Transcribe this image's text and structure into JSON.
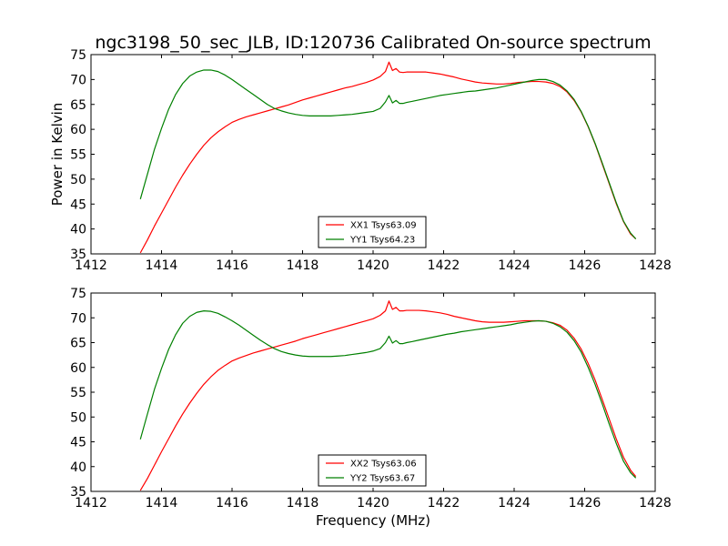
{
  "title": "ngc3198_50_sec_JLB, ID:120736 Calibrated On-source spectrum",
  "chart_data": [
    {
      "type": "line",
      "ylabel": "Power in Kelvin",
      "xlabel": "",
      "xlim": [
        1412,
        1428
      ],
      "ylim": [
        35,
        75
      ],
      "xticks": [
        "1412",
        "1414",
        "1416",
        "1418",
        "1420",
        "1422",
        "1424",
        "1426",
        "1428"
      ],
      "yticks": [
        "35",
        "40",
        "45",
        "50",
        "55",
        "60",
        "65",
        "70",
        "75"
      ],
      "legend_position": "lower-center",
      "series": [
        {
          "name": "XX1 Tsys63.09",
          "color": "#ff0000",
          "x": [
            1413.4,
            1413.6,
            1413.8,
            1414.0,
            1414.2,
            1414.4,
            1414.6,
            1414.8,
            1415.0,
            1415.2,
            1415.4,
            1415.6,
            1415.8,
            1416.0,
            1416.2,
            1416.4,
            1416.6,
            1416.8,
            1417.0,
            1417.2,
            1417.4,
            1417.6,
            1417.8,
            1418.0,
            1418.2,
            1418.4,
            1418.6,
            1418.8,
            1419.0,
            1419.2,
            1419.4,
            1419.6,
            1419.8,
            1420.0,
            1420.2,
            1420.35,
            1420.45,
            1420.55,
            1420.65,
            1420.75,
            1420.85,
            1420.95,
            1421.1,
            1421.3,
            1421.5,
            1421.7,
            1421.9,
            1422.1,
            1422.3,
            1422.5,
            1422.7,
            1422.9,
            1423.1,
            1423.3,
            1423.5,
            1423.7,
            1423.9,
            1424.1,
            1424.3,
            1424.5,
            1424.7,
            1424.9,
            1425.1,
            1425.3,
            1425.5,
            1425.7,
            1425.9,
            1426.1,
            1426.3,
            1426.5,
            1426.7,
            1426.9,
            1427.1,
            1427.3,
            1427.45
          ],
          "y": [
            35.2,
            37.8,
            40.6,
            43.2,
            45.8,
            48.4,
            50.8,
            53.0,
            55.0,
            56.8,
            58.3,
            59.5,
            60.5,
            61.4,
            62.0,
            62.5,
            62.9,
            63.3,
            63.7,
            64.1,
            64.5,
            64.9,
            65.4,
            65.9,
            66.3,
            66.7,
            67.1,
            67.5,
            67.9,
            68.3,
            68.6,
            69.0,
            69.4,
            69.9,
            70.6,
            71.6,
            73.5,
            71.8,
            72.2,
            71.5,
            71.4,
            71.5,
            71.5,
            71.5,
            71.5,
            71.3,
            71.1,
            70.8,
            70.5,
            70.1,
            69.8,
            69.5,
            69.3,
            69.2,
            69.1,
            69.1,
            69.2,
            69.4,
            69.5,
            69.6,
            69.6,
            69.5,
            69.2,
            68.6,
            67.5,
            65.8,
            63.5,
            60.5,
            57.0,
            53.0,
            49.0,
            45.0,
            41.5,
            39.0,
            38.0
          ]
        },
        {
          "name": "YY1 Tsys64.23",
          "color": "#008000",
          "x": [
            1413.4,
            1413.6,
            1413.8,
            1414.0,
            1414.2,
            1414.4,
            1414.6,
            1414.8,
            1415.0,
            1415.2,
            1415.4,
            1415.6,
            1415.8,
            1416.0,
            1416.2,
            1416.4,
            1416.6,
            1416.8,
            1417.0,
            1417.2,
            1417.4,
            1417.6,
            1417.8,
            1418.0,
            1418.2,
            1418.4,
            1418.6,
            1418.8,
            1419.0,
            1419.2,
            1419.4,
            1419.6,
            1419.8,
            1420.0,
            1420.2,
            1420.35,
            1420.45,
            1420.55,
            1420.65,
            1420.75,
            1420.85,
            1420.95,
            1421.1,
            1421.3,
            1421.5,
            1421.7,
            1421.9,
            1422.1,
            1422.3,
            1422.5,
            1422.7,
            1422.9,
            1423.1,
            1423.3,
            1423.5,
            1423.7,
            1423.9,
            1424.1,
            1424.3,
            1424.5,
            1424.7,
            1424.9,
            1425.1,
            1425.3,
            1425.5,
            1425.7,
            1425.9,
            1426.1,
            1426.3,
            1426.5,
            1426.7,
            1426.9,
            1427.1,
            1427.3,
            1427.45
          ],
          "y": [
            46.0,
            51.0,
            56.0,
            60.2,
            64.0,
            67.0,
            69.2,
            70.7,
            71.5,
            71.9,
            71.9,
            71.6,
            70.9,
            70.0,
            69.0,
            68.0,
            67.0,
            66.0,
            65.0,
            64.2,
            63.7,
            63.3,
            63.0,
            62.8,
            62.7,
            62.7,
            62.7,
            62.7,
            62.8,
            62.9,
            63.0,
            63.2,
            63.4,
            63.6,
            64.2,
            65.5,
            66.8,
            65.3,
            65.8,
            65.2,
            65.2,
            65.4,
            65.6,
            65.9,
            66.2,
            66.5,
            66.8,
            67.0,
            67.2,
            67.4,
            67.6,
            67.7,
            67.9,
            68.1,
            68.3,
            68.6,
            68.9,
            69.2,
            69.5,
            69.8,
            70.0,
            70.0,
            69.6,
            68.9,
            67.7,
            66.0,
            63.6,
            60.6,
            57.1,
            53.2,
            49.2,
            45.2,
            41.6,
            39.2,
            38.0
          ]
        }
      ]
    },
    {
      "type": "line",
      "ylabel": "",
      "xlabel": "Frequency (MHz)",
      "xlim": [
        1412,
        1428
      ],
      "ylim": [
        35,
        75
      ],
      "xticks": [
        "1412",
        "1414",
        "1416",
        "1418",
        "1420",
        "1422",
        "1424",
        "1426",
        "1428"
      ],
      "yticks": [
        "35",
        "40",
        "45",
        "50",
        "55",
        "60",
        "65",
        "70",
        "75"
      ],
      "legend_position": "lower-center",
      "series": [
        {
          "name": "XX2 Tsys63.06",
          "color": "#ff0000",
          "x": [
            1413.4,
            1413.6,
            1413.8,
            1414.0,
            1414.2,
            1414.4,
            1414.6,
            1414.8,
            1415.0,
            1415.2,
            1415.4,
            1415.6,
            1415.8,
            1416.0,
            1416.2,
            1416.4,
            1416.6,
            1416.8,
            1417.0,
            1417.2,
            1417.4,
            1417.6,
            1417.8,
            1418.0,
            1418.2,
            1418.4,
            1418.6,
            1418.8,
            1419.0,
            1419.2,
            1419.4,
            1419.6,
            1419.8,
            1420.0,
            1420.2,
            1420.35,
            1420.45,
            1420.55,
            1420.65,
            1420.75,
            1420.85,
            1420.95,
            1421.1,
            1421.3,
            1421.5,
            1421.7,
            1421.9,
            1422.1,
            1422.3,
            1422.5,
            1422.7,
            1422.9,
            1423.1,
            1423.3,
            1423.5,
            1423.7,
            1423.9,
            1424.1,
            1424.3,
            1424.5,
            1424.7,
            1424.9,
            1425.1,
            1425.3,
            1425.5,
            1425.7,
            1425.9,
            1426.1,
            1426.3,
            1426.5,
            1426.7,
            1426.9,
            1427.1,
            1427.3,
            1427.45
          ],
          "y": [
            35.2,
            37.6,
            40.3,
            43.0,
            45.6,
            48.2,
            50.6,
            52.8,
            54.8,
            56.6,
            58.1,
            59.4,
            60.4,
            61.3,
            61.9,
            62.4,
            62.9,
            63.3,
            63.7,
            64.1,
            64.5,
            64.9,
            65.3,
            65.8,
            66.2,
            66.6,
            67.0,
            67.4,
            67.8,
            68.2,
            68.6,
            69.0,
            69.4,
            69.8,
            70.5,
            71.4,
            73.4,
            71.7,
            72.1,
            71.4,
            71.4,
            71.5,
            71.5,
            71.5,
            71.4,
            71.2,
            71.0,
            70.7,
            70.3,
            70.0,
            69.7,
            69.4,
            69.2,
            69.1,
            69.1,
            69.1,
            69.2,
            69.3,
            69.4,
            69.4,
            69.4,
            69.3,
            69.0,
            68.5,
            67.5,
            65.9,
            63.7,
            60.8,
            57.4,
            53.5,
            49.5,
            45.5,
            41.9,
            39.3,
            38.0
          ]
        },
        {
          "name": "YY2 Tsys63.67",
          "color": "#008000",
          "x": [
            1413.4,
            1413.6,
            1413.8,
            1414.0,
            1414.2,
            1414.4,
            1414.6,
            1414.8,
            1415.0,
            1415.2,
            1415.4,
            1415.6,
            1415.8,
            1416.0,
            1416.2,
            1416.4,
            1416.6,
            1416.8,
            1417.0,
            1417.2,
            1417.4,
            1417.6,
            1417.8,
            1418.0,
            1418.2,
            1418.4,
            1418.6,
            1418.8,
            1419.0,
            1419.2,
            1419.4,
            1419.6,
            1419.8,
            1420.0,
            1420.2,
            1420.35,
            1420.45,
            1420.55,
            1420.65,
            1420.75,
            1420.85,
            1420.95,
            1421.1,
            1421.3,
            1421.5,
            1421.7,
            1421.9,
            1422.1,
            1422.3,
            1422.5,
            1422.7,
            1422.9,
            1423.1,
            1423.3,
            1423.5,
            1423.7,
            1423.9,
            1424.1,
            1424.3,
            1424.5,
            1424.7,
            1424.9,
            1425.1,
            1425.3,
            1425.5,
            1425.7,
            1425.9,
            1426.1,
            1426.3,
            1426.5,
            1426.7,
            1426.9,
            1427.1,
            1427.3,
            1427.45
          ],
          "y": [
            45.5,
            50.6,
            55.6,
            59.8,
            63.6,
            66.6,
            68.9,
            70.3,
            71.1,
            71.4,
            71.3,
            70.9,
            70.2,
            69.4,
            68.5,
            67.5,
            66.5,
            65.5,
            64.6,
            63.8,
            63.2,
            62.8,
            62.5,
            62.3,
            62.2,
            62.2,
            62.2,
            62.2,
            62.3,
            62.4,
            62.6,
            62.8,
            63.0,
            63.3,
            63.8,
            65.0,
            66.3,
            64.9,
            65.4,
            64.8,
            64.8,
            65.0,
            65.2,
            65.5,
            65.8,
            66.1,
            66.4,
            66.7,
            66.9,
            67.2,
            67.4,
            67.6,
            67.8,
            68.0,
            68.2,
            68.4,
            68.6,
            68.9,
            69.1,
            69.3,
            69.4,
            69.3,
            68.9,
            68.2,
            67.1,
            65.4,
            63.1,
            60.0,
            56.5,
            52.6,
            48.5,
            44.6,
            41.1,
            38.8,
            37.7
          ]
        }
      ]
    }
  ]
}
